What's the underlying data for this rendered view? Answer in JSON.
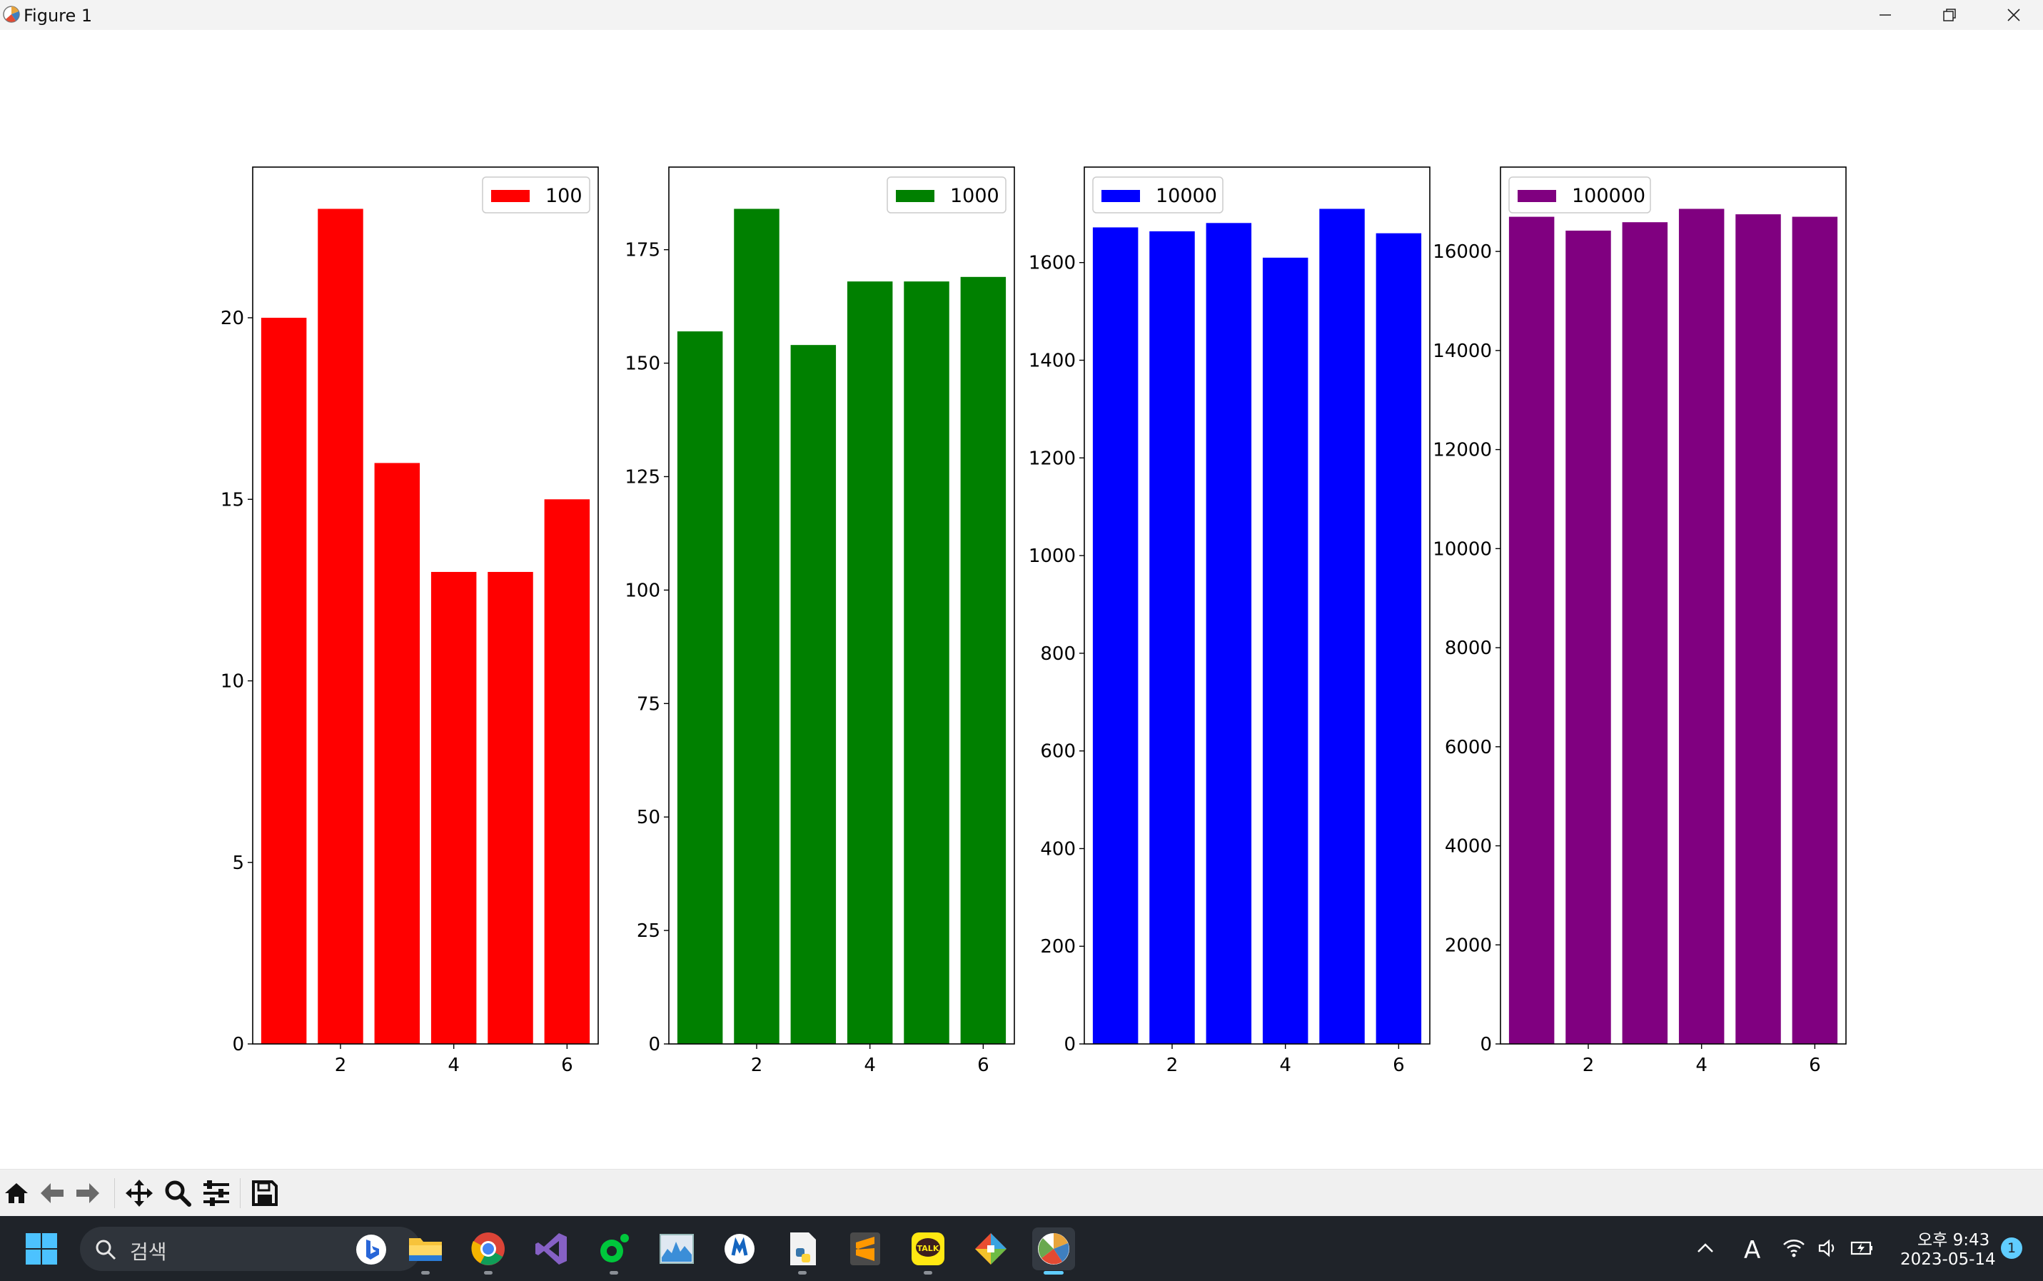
{
  "window": {
    "title": "Figure 1"
  },
  "toolbar": {
    "buttons": [
      "home-icon",
      "back-icon",
      "forward-icon",
      "pan-icon",
      "zoom-icon",
      "configure-subplots-icon",
      "save-icon"
    ]
  },
  "taskbar": {
    "search_placeholder": "검색",
    "apps": [
      "start",
      "search",
      "file-explorer",
      "chrome",
      "visual-studio",
      "app-green",
      "performance-monitor",
      "app-blue",
      "python-idle",
      "sublime-text",
      "kakaotalk",
      "git-app",
      "matplotlib-figure"
    ],
    "clock": {
      "ampm_time": "오후 9:43",
      "date": "2023-05-14"
    },
    "ime": "A",
    "notifications": "1"
  },
  "chart_data": [
    {
      "type": "bar",
      "legend": "100",
      "color": "#ff0000",
      "x": [
        1,
        2,
        3,
        4,
        5,
        6
      ],
      "values": [
        20,
        23,
        16,
        13,
        13,
        15
      ],
      "xticks": [
        2,
        4,
        6
      ],
      "yticks": [
        0,
        5,
        10,
        15,
        20
      ],
      "ylim": [
        0,
        24.15
      ],
      "legend_position": "upper right"
    },
    {
      "type": "bar",
      "legend": "1000",
      "color": "#008000",
      "x": [
        1,
        2,
        3,
        4,
        5,
        6
      ],
      "values": [
        157,
        184,
        154,
        168,
        168,
        169
      ],
      "xticks": [
        2,
        4,
        6
      ],
      "yticks": [
        0,
        25,
        50,
        75,
        100,
        125,
        150,
        175
      ],
      "ylim": [
        0,
        193.2
      ],
      "legend_position": "upper right"
    },
    {
      "type": "bar",
      "legend": "10000",
      "color": "#0000ff",
      "x": [
        1,
        2,
        3,
        4,
        5,
        6
      ],
      "values": [
        1672,
        1664,
        1681,
        1610,
        1710,
        1660
      ],
      "xticks": [
        2,
        4,
        6
      ],
      "yticks": [
        0,
        200,
        400,
        600,
        800,
        1000,
        1200,
        1400,
        1600
      ],
      "ylim": [
        0,
        1795.5
      ],
      "legend_position": "upper left"
    },
    {
      "type": "bar",
      "legend": "100000",
      "color": "#800080",
      "x": [
        1,
        2,
        3,
        4,
        5,
        6
      ],
      "values": [
        16700,
        16420,
        16590,
        16860,
        16750,
        16700
      ],
      "xticks": [
        2,
        4,
        6
      ],
      "yticks": [
        0,
        2000,
        4000,
        6000,
        8000,
        10000,
        12000,
        14000,
        16000
      ],
      "ylim": [
        0,
        17703
      ],
      "legend_position": "upper left"
    }
  ]
}
